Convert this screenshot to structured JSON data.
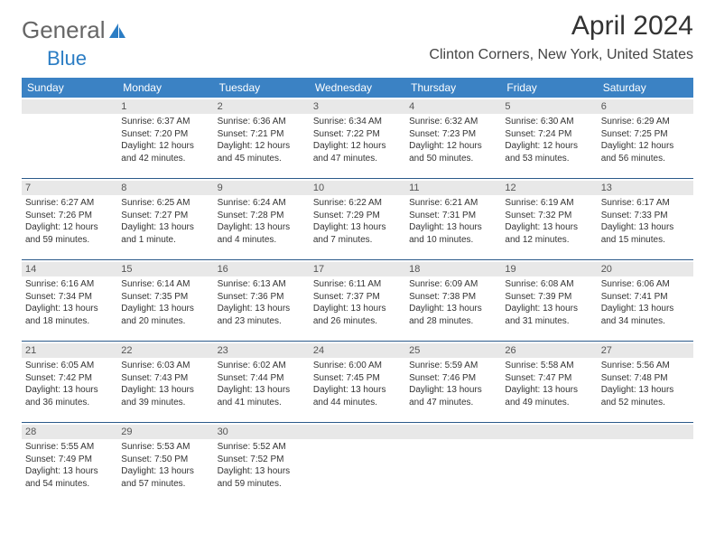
{
  "brand": {
    "part1": "General",
    "part2": "Blue"
  },
  "title": "April 2024",
  "location": "Clinton Corners, New York, United States",
  "colors": {
    "header_bg": "#3b82c4",
    "header_text": "#ffffff",
    "daynum_bg": "#e8e8e8",
    "border": "#2b5a8a",
    "logo_blue": "#2b7dc4",
    "logo_gray": "#666666"
  },
  "weekdays": [
    "Sunday",
    "Monday",
    "Tuesday",
    "Wednesday",
    "Thursday",
    "Friday",
    "Saturday"
  ],
  "weeks": [
    [
      {
        "day": "",
        "lines": []
      },
      {
        "day": "1",
        "lines": [
          "Sunrise: 6:37 AM",
          "Sunset: 7:20 PM",
          "Daylight: 12 hours",
          "and 42 minutes."
        ]
      },
      {
        "day": "2",
        "lines": [
          "Sunrise: 6:36 AM",
          "Sunset: 7:21 PM",
          "Daylight: 12 hours",
          "and 45 minutes."
        ]
      },
      {
        "day": "3",
        "lines": [
          "Sunrise: 6:34 AM",
          "Sunset: 7:22 PM",
          "Daylight: 12 hours",
          "and 47 minutes."
        ]
      },
      {
        "day": "4",
        "lines": [
          "Sunrise: 6:32 AM",
          "Sunset: 7:23 PM",
          "Daylight: 12 hours",
          "and 50 minutes."
        ]
      },
      {
        "day": "5",
        "lines": [
          "Sunrise: 6:30 AM",
          "Sunset: 7:24 PM",
          "Daylight: 12 hours",
          "and 53 minutes."
        ]
      },
      {
        "day": "6",
        "lines": [
          "Sunrise: 6:29 AM",
          "Sunset: 7:25 PM",
          "Daylight: 12 hours",
          "and 56 minutes."
        ]
      }
    ],
    [
      {
        "day": "7",
        "lines": [
          "Sunrise: 6:27 AM",
          "Sunset: 7:26 PM",
          "Daylight: 12 hours",
          "and 59 minutes."
        ]
      },
      {
        "day": "8",
        "lines": [
          "Sunrise: 6:25 AM",
          "Sunset: 7:27 PM",
          "Daylight: 13 hours",
          "and 1 minute."
        ]
      },
      {
        "day": "9",
        "lines": [
          "Sunrise: 6:24 AM",
          "Sunset: 7:28 PM",
          "Daylight: 13 hours",
          "and 4 minutes."
        ]
      },
      {
        "day": "10",
        "lines": [
          "Sunrise: 6:22 AM",
          "Sunset: 7:29 PM",
          "Daylight: 13 hours",
          "and 7 minutes."
        ]
      },
      {
        "day": "11",
        "lines": [
          "Sunrise: 6:21 AM",
          "Sunset: 7:31 PM",
          "Daylight: 13 hours",
          "and 10 minutes."
        ]
      },
      {
        "day": "12",
        "lines": [
          "Sunrise: 6:19 AM",
          "Sunset: 7:32 PM",
          "Daylight: 13 hours",
          "and 12 minutes."
        ]
      },
      {
        "day": "13",
        "lines": [
          "Sunrise: 6:17 AM",
          "Sunset: 7:33 PM",
          "Daylight: 13 hours",
          "and 15 minutes."
        ]
      }
    ],
    [
      {
        "day": "14",
        "lines": [
          "Sunrise: 6:16 AM",
          "Sunset: 7:34 PM",
          "Daylight: 13 hours",
          "and 18 minutes."
        ]
      },
      {
        "day": "15",
        "lines": [
          "Sunrise: 6:14 AM",
          "Sunset: 7:35 PM",
          "Daylight: 13 hours",
          "and 20 minutes."
        ]
      },
      {
        "day": "16",
        "lines": [
          "Sunrise: 6:13 AM",
          "Sunset: 7:36 PM",
          "Daylight: 13 hours",
          "and 23 minutes."
        ]
      },
      {
        "day": "17",
        "lines": [
          "Sunrise: 6:11 AM",
          "Sunset: 7:37 PM",
          "Daylight: 13 hours",
          "and 26 minutes."
        ]
      },
      {
        "day": "18",
        "lines": [
          "Sunrise: 6:09 AM",
          "Sunset: 7:38 PM",
          "Daylight: 13 hours",
          "and 28 minutes."
        ]
      },
      {
        "day": "19",
        "lines": [
          "Sunrise: 6:08 AM",
          "Sunset: 7:39 PM",
          "Daylight: 13 hours",
          "and 31 minutes."
        ]
      },
      {
        "day": "20",
        "lines": [
          "Sunrise: 6:06 AM",
          "Sunset: 7:41 PM",
          "Daylight: 13 hours",
          "and 34 minutes."
        ]
      }
    ],
    [
      {
        "day": "21",
        "lines": [
          "Sunrise: 6:05 AM",
          "Sunset: 7:42 PM",
          "Daylight: 13 hours",
          "and 36 minutes."
        ]
      },
      {
        "day": "22",
        "lines": [
          "Sunrise: 6:03 AM",
          "Sunset: 7:43 PM",
          "Daylight: 13 hours",
          "and 39 minutes."
        ]
      },
      {
        "day": "23",
        "lines": [
          "Sunrise: 6:02 AM",
          "Sunset: 7:44 PM",
          "Daylight: 13 hours",
          "and 41 minutes."
        ]
      },
      {
        "day": "24",
        "lines": [
          "Sunrise: 6:00 AM",
          "Sunset: 7:45 PM",
          "Daylight: 13 hours",
          "and 44 minutes."
        ]
      },
      {
        "day": "25",
        "lines": [
          "Sunrise: 5:59 AM",
          "Sunset: 7:46 PM",
          "Daylight: 13 hours",
          "and 47 minutes."
        ]
      },
      {
        "day": "26",
        "lines": [
          "Sunrise: 5:58 AM",
          "Sunset: 7:47 PM",
          "Daylight: 13 hours",
          "and 49 minutes."
        ]
      },
      {
        "day": "27",
        "lines": [
          "Sunrise: 5:56 AM",
          "Sunset: 7:48 PM",
          "Daylight: 13 hours",
          "and 52 minutes."
        ]
      }
    ],
    [
      {
        "day": "28",
        "lines": [
          "Sunrise: 5:55 AM",
          "Sunset: 7:49 PM",
          "Daylight: 13 hours",
          "and 54 minutes."
        ]
      },
      {
        "day": "29",
        "lines": [
          "Sunrise: 5:53 AM",
          "Sunset: 7:50 PM",
          "Daylight: 13 hours",
          "and 57 minutes."
        ]
      },
      {
        "day": "30",
        "lines": [
          "Sunrise: 5:52 AM",
          "Sunset: 7:52 PM",
          "Daylight: 13 hours",
          "and 59 minutes."
        ]
      },
      {
        "day": "",
        "lines": []
      },
      {
        "day": "",
        "lines": []
      },
      {
        "day": "",
        "lines": []
      },
      {
        "day": "",
        "lines": []
      }
    ]
  ]
}
